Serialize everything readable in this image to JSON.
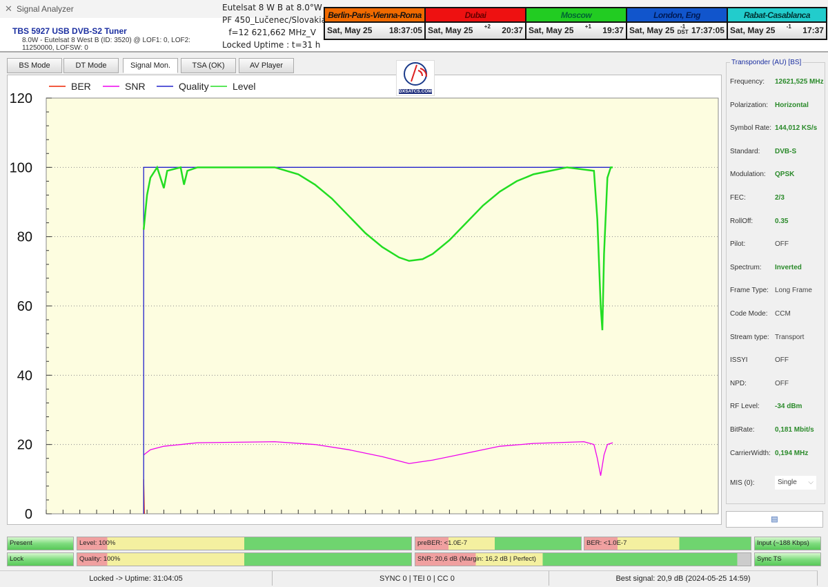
{
  "app": {
    "title": "Signal Analyzer",
    "tuner": "TBS 5927 USB DVB-S2 Tuner",
    "subtitle": "8.0W - Eutelsat 8 West B (ID: 3520) @ LOF1: 0, LOF2: 11250000, LOFSW: 0"
  },
  "satinfo": [
    "Eutelsat 8 W B at 8.0°W",
    "PF 450_Lučenec/Slovakia",
    "f=12 621,662 MHz_V",
    "Locked Uptime : t=31 h"
  ],
  "clocks": [
    {
      "name": "Berlin-Paris-Vienna-Roma",
      "date": "Sat, May 25",
      "offset": "",
      "time": "18:37:05",
      "bg": "#f06a00",
      "fg": "#111"
    },
    {
      "name": "Dubai",
      "date": "Sat, May 25",
      "offset": "+2",
      "time": "20:37",
      "bg": "#ee1111",
      "fg": "#600"
    },
    {
      "name": "Moscow",
      "date": "Sat, May 25",
      "offset": "+1",
      "time": "19:37",
      "bg": "#22cc22",
      "fg": "#063"
    },
    {
      "name": "London, Eng",
      "date": "Sat, May 25",
      "offset": "-1 DST",
      "time": "17:37:05",
      "bg": "#1155cc",
      "fg": "#001a55"
    },
    {
      "name": "Rabat-Casablanca",
      "date": "Sat, May 25",
      "offset": "-1",
      "time": "17:37",
      "bg": "#22cccc",
      "fg": "#033"
    }
  ],
  "tabs": [
    {
      "label": "BS Mode"
    },
    {
      "label": "DT Mode"
    },
    {
      "label": "Signal Mon.",
      "active": true
    },
    {
      "label": "TSA (OK)"
    },
    {
      "label": "AV Player"
    }
  ],
  "logo": "DXSATCS.COM",
  "chart_data": {
    "type": "line",
    "xlim": [
      0,
      200
    ],
    "ylim": [
      0,
      120
    ],
    "yticks": [
      0,
      20,
      40,
      60,
      80,
      100,
      120
    ],
    "grid": "horizontal dotted",
    "legend": "top-left",
    "series": [
      {
        "name": "BER",
        "color": "#ee2200",
        "points": [
          [
            29,
            0
          ],
          [
            29,
            10
          ],
          [
            29.2,
            0
          ]
        ]
      },
      {
        "name": "SNR",
        "color": "#ee00ee",
        "points": [
          [
            29,
            17
          ],
          [
            31,
            18.5
          ],
          [
            35,
            19.5
          ],
          [
            40,
            20
          ],
          [
            45,
            20.5
          ],
          [
            68,
            20.8
          ],
          [
            80,
            20
          ],
          [
            90,
            18.5
          ],
          [
            100,
            16.5
          ],
          [
            106,
            15
          ],
          [
            108,
            14.5
          ],
          [
            110,
            14.8
          ],
          [
            115,
            15.5
          ],
          [
            125,
            17.5
          ],
          [
            135,
            19.5
          ],
          [
            145,
            20.3
          ],
          [
            160,
            20.8
          ],
          [
            163,
            20
          ],
          [
            164,
            16
          ],
          [
            165,
            11
          ],
          [
            166,
            17
          ],
          [
            167,
            20
          ],
          [
            168.6,
            20.5
          ]
        ]
      },
      {
        "name": "Quality",
        "color": "#2222cc",
        "points": [
          [
            29,
            0
          ],
          [
            29,
            100
          ],
          [
            168.6,
            100
          ]
        ]
      },
      {
        "name": "Level",
        "color": "#22dd22",
        "points": [
          [
            29,
            82
          ],
          [
            30,
            92
          ],
          [
            31,
            97
          ],
          [
            33,
            100
          ],
          [
            35,
            94
          ],
          [
            36,
            99
          ],
          [
            40,
            100
          ],
          [
            41,
            95
          ],
          [
            42,
            99
          ],
          [
            45,
            100
          ],
          [
            68,
            100
          ],
          [
            75,
            98
          ],
          [
            80,
            95
          ],
          [
            85,
            91
          ],
          [
            90,
            86
          ],
          [
            95,
            81
          ],
          [
            100,
            77
          ],
          [
            105,
            74
          ],
          [
            108,
            73
          ],
          [
            112,
            73.5
          ],
          [
            115,
            75
          ],
          [
            120,
            79
          ],
          [
            125,
            84
          ],
          [
            130,
            89
          ],
          [
            135,
            93
          ],
          [
            140,
            96
          ],
          [
            145,
            98
          ],
          [
            150,
            99
          ],
          [
            155,
            100
          ],
          [
            163,
            99
          ],
          [
            164,
            85
          ],
          [
            165,
            60
          ],
          [
            165.5,
            53
          ],
          [
            166,
            75
          ],
          [
            167,
            97
          ],
          [
            168,
            100
          ],
          [
            168.6,
            100
          ]
        ]
      }
    ]
  },
  "panel": {
    "title": "Transponder (AU) [BS]",
    "rows": [
      {
        "k": "Frequency:",
        "v": "12621,525 MHz",
        "hl": true
      },
      {
        "k": "Polarization:",
        "v": "Horizontal",
        "hl": true
      },
      {
        "k": "Symbol Rate:",
        "v": "144,012 KS/s",
        "hl": true
      },
      {
        "k": "Standard:",
        "v": "DVB-S",
        "hl": true
      },
      {
        "k": "Modulation:",
        "v": "QPSK",
        "hl": true
      },
      {
        "k": "FEC:",
        "v": "2/3",
        "hl": true
      },
      {
        "k": "RollOff:",
        "v": "0.35",
        "hl": true
      },
      {
        "k": "Pilot:",
        "v": "OFF"
      },
      {
        "k": "Spectrum:",
        "v": "Inverted",
        "hl": true
      },
      {
        "k": "Frame Type:",
        "v": "Long Frame"
      },
      {
        "k": "Code Mode:",
        "v": "CCM"
      },
      {
        "k": "Stream type:",
        "v": "Transport"
      },
      {
        "k": "ISSYI",
        "v": "OFF"
      },
      {
        "k": "NPD:",
        "v": "OFF"
      },
      {
        "k": "RF Level:",
        "v": "-34 dBm",
        "hl": true
      },
      {
        "k": "BitRate:",
        "v": "0,181 Mbit/s",
        "hl": true
      },
      {
        "k": "CarrierWidth:",
        "v": "0,194 MHz",
        "hl": true
      }
    ],
    "mis_label": "MIS (0):",
    "mis_value": "Single"
  },
  "indicators": {
    "present": "Present",
    "lock": "Lock",
    "level": "Level: 100%",
    "quality": "Quality: 100%",
    "prebér": "",
    "preber": "preBER: <1.0E-7",
    "ber": "BER: <1.0E-7",
    "snr": "SNR: 20,6 dB (Margin: 16,2 dB | Perfect)",
    "input": "Input (~188 Kbps)",
    "sync": "Sync TS"
  },
  "status": {
    "uptime": "Locked -> Uptime: 31:04:05",
    "counters": "SYNC 0 | TEI 0 | CC 0",
    "best": "Best signal: 20,9 dB (2024-05-25 14:59)"
  }
}
